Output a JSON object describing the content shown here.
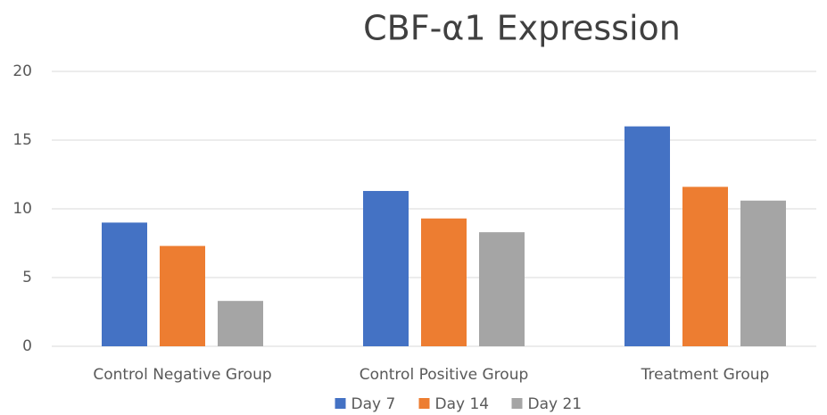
{
  "chart_data": {
    "type": "bar",
    "title": "CBF-α1 Expression",
    "categories": [
      "Control Negative Group",
      "Control Positive Group",
      "Treatment Group"
    ],
    "series": [
      {
        "name": "Day 7",
        "color": "#4472c4",
        "values": [
          9.0,
          11.3,
          16.0
        ]
      },
      {
        "name": "Day 14",
        "color": "#ed7d31",
        "values": [
          7.3,
          9.3,
          11.6
        ]
      },
      {
        "name": "Day 21",
        "color": "#a5a5a5",
        "values": [
          3.3,
          8.3,
          10.6
        ]
      }
    ],
    "ylim": [
      0,
      20
    ],
    "yticks": [
      0,
      5,
      10,
      15,
      20
    ],
    "grid": true,
    "legend": "bottom"
  }
}
